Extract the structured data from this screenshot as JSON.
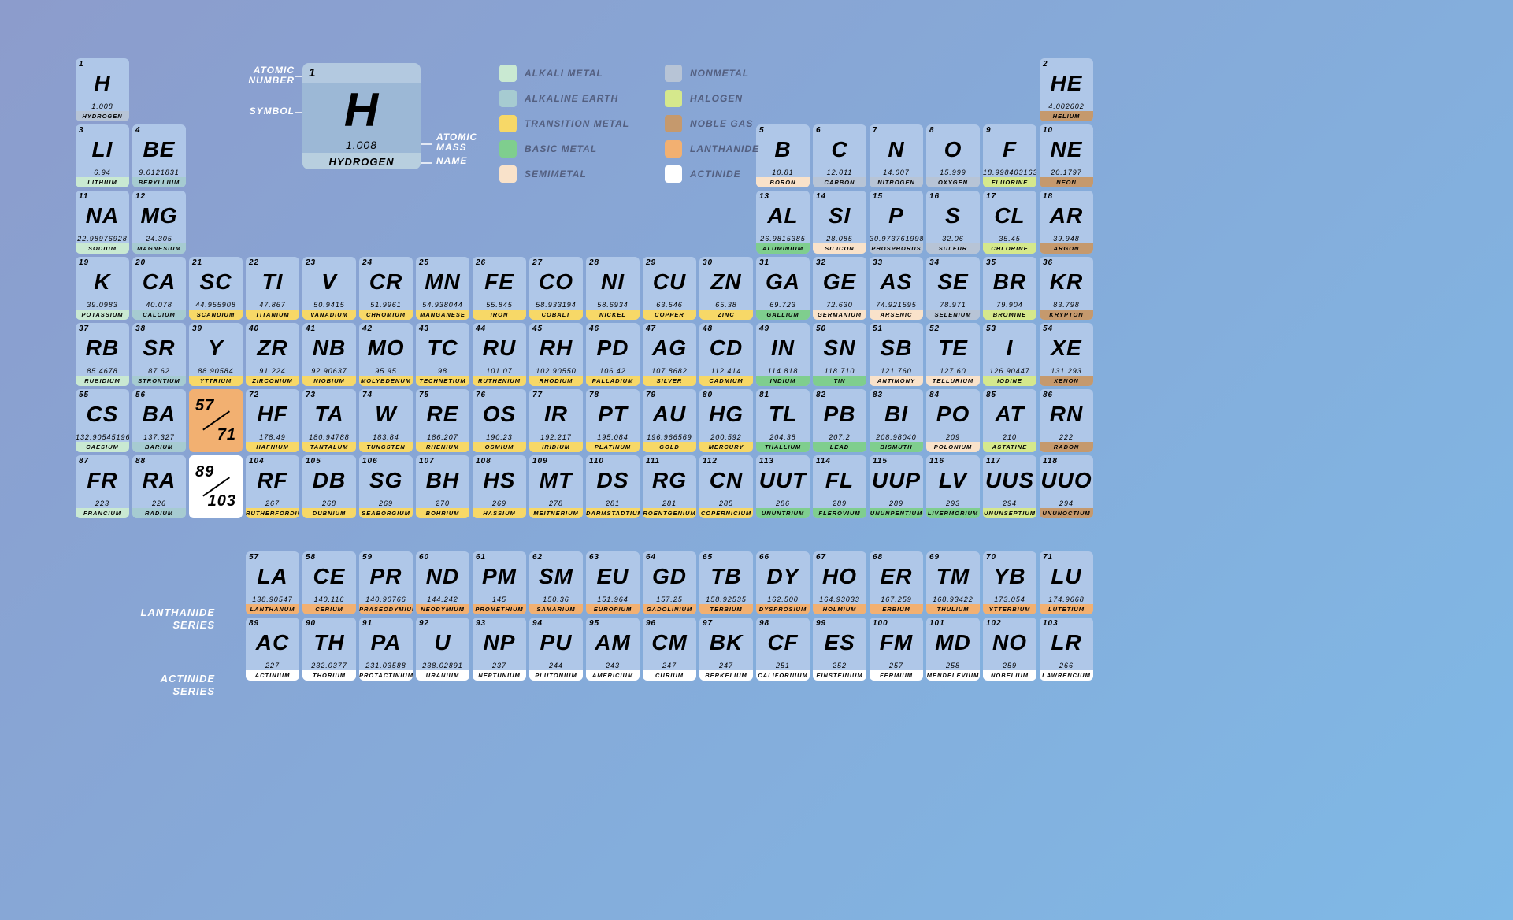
{
  "colors": {
    "cell_top": "#afc7e8",
    "key_top": "#9cb8d6",
    "key_num_row": "#b3c9e0",
    "key_name_row": "#b8cfdf"
  },
  "categories": {
    "alkali": {
      "label": "Alkali Metal",
      "color": "#c9e9d2"
    },
    "alkaline": {
      "label": "Alkaline Earth",
      "color": "#a6cbd1"
    },
    "transition": {
      "label": "Transition Metal",
      "color": "#f7d867"
    },
    "basic": {
      "label": "Basic Metal",
      "color": "#7fce8e"
    },
    "semimetal": {
      "label": "Semimetal",
      "color": "#f9e2ca"
    },
    "nonmetal": {
      "label": "Nonmetal",
      "color": "#b7c4d6"
    },
    "halogen": {
      "label": "Halogen",
      "color": "#d5e88c"
    },
    "noble": {
      "label": "Noble Gas",
      "color": "#c5996d"
    },
    "lanthanide": {
      "label": "Lanthanide",
      "color": "#f2b071"
    },
    "actinide": {
      "label": "Actinide",
      "color": "#ffffff"
    }
  },
  "legend_order": [
    "alkali",
    "nonmetal",
    "alkaline",
    "halogen",
    "transition",
    "noble",
    "basic",
    "lanthanide",
    "semimetal",
    "actinide"
  ],
  "key": {
    "labels": {
      "atomic_number": "Atomic\nNumber",
      "symbol": "Symbol",
      "atomic_mass": "Atomic\nMass",
      "name": "Name"
    },
    "sample": {
      "num": "1",
      "sym": "H",
      "mass": "1.008",
      "name": "Hydrogen"
    }
  },
  "series_labels": {
    "lanthanide": "Lanthanide\nSeries",
    "actinide": "Actinide\nSeries"
  },
  "ranges": [
    {
      "row": 6,
      "col": 3,
      "from": "57",
      "to": "71",
      "cat": "lanthanide"
    },
    {
      "row": 7,
      "col": 3,
      "from": "89",
      "to": "103",
      "cat": "actinide"
    }
  ],
  "elements": [
    {
      "n": 1,
      "s": "H",
      "m": "1.008",
      "nm": "Hydrogen",
      "c": "nonmetal",
      "r": 1,
      "col": 1
    },
    {
      "n": 2,
      "s": "He",
      "m": "4.002602",
      "nm": "Helium",
      "c": "noble",
      "r": 1,
      "col": 18
    },
    {
      "n": 3,
      "s": "Li",
      "m": "6.94",
      "nm": "Lithium",
      "c": "alkali",
      "r": 2,
      "col": 1
    },
    {
      "n": 4,
      "s": "Be",
      "m": "9.0121831",
      "nm": "Beryllium",
      "c": "alkaline",
      "r": 2,
      "col": 2
    },
    {
      "n": 5,
      "s": "B",
      "m": "10.81",
      "nm": "Boron",
      "c": "semimetal",
      "r": 2,
      "col": 13
    },
    {
      "n": 6,
      "s": "C",
      "m": "12.011",
      "nm": "Carbon",
      "c": "nonmetal",
      "r": 2,
      "col": 14
    },
    {
      "n": 7,
      "s": "N",
      "m": "14.007",
      "nm": "Nitrogen",
      "c": "nonmetal",
      "r": 2,
      "col": 15
    },
    {
      "n": 8,
      "s": "O",
      "m": "15.999",
      "nm": "Oxygen",
      "c": "nonmetal",
      "r": 2,
      "col": 16
    },
    {
      "n": 9,
      "s": "F",
      "m": "18.998403163",
      "nm": "Fluorine",
      "c": "halogen",
      "r": 2,
      "col": 17
    },
    {
      "n": 10,
      "s": "Ne",
      "m": "20.1797",
      "nm": "Neon",
      "c": "noble",
      "r": 2,
      "col": 18
    },
    {
      "n": 11,
      "s": "Na",
      "m": "22.98976928",
      "nm": "Sodium",
      "c": "alkali",
      "r": 3,
      "col": 1
    },
    {
      "n": 12,
      "s": "Mg",
      "m": "24.305",
      "nm": "Magnesium",
      "c": "alkaline",
      "r": 3,
      "col": 2
    },
    {
      "n": 13,
      "s": "Al",
      "m": "26.9815385",
      "nm": "Aluminium",
      "c": "basic",
      "r": 3,
      "col": 13
    },
    {
      "n": 14,
      "s": "Si",
      "m": "28.085",
      "nm": "Silicon",
      "c": "semimetal",
      "r": 3,
      "col": 14
    },
    {
      "n": 15,
      "s": "P",
      "m": "30.973761998",
      "nm": "Phosphorus",
      "c": "nonmetal",
      "r": 3,
      "col": 15
    },
    {
      "n": 16,
      "s": "S",
      "m": "32.06",
      "nm": "Sulfur",
      "c": "nonmetal",
      "r": 3,
      "col": 16
    },
    {
      "n": 17,
      "s": "Cl",
      "m": "35.45",
      "nm": "Chlorine",
      "c": "halogen",
      "r": 3,
      "col": 17
    },
    {
      "n": 18,
      "s": "Ar",
      "m": "39.948",
      "nm": "Argon",
      "c": "noble",
      "r": 3,
      "col": 18
    },
    {
      "n": 19,
      "s": "K",
      "m": "39.0983",
      "nm": "Potassium",
      "c": "alkali",
      "r": 4,
      "col": 1
    },
    {
      "n": 20,
      "s": "Ca",
      "m": "40.078",
      "nm": "Calcium",
      "c": "alkaline",
      "r": 4,
      "col": 2
    },
    {
      "n": 21,
      "s": "Sc",
      "m": "44.955908",
      "nm": "Scandium",
      "c": "transition",
      "r": 4,
      "col": 3
    },
    {
      "n": 22,
      "s": "Ti",
      "m": "47.867",
      "nm": "Titanium",
      "c": "transition",
      "r": 4,
      "col": 4
    },
    {
      "n": 23,
      "s": "V",
      "m": "50.9415",
      "nm": "Vanadium",
      "c": "transition",
      "r": 4,
      "col": 5
    },
    {
      "n": 24,
      "s": "Cr",
      "m": "51.9961",
      "nm": "Chromium",
      "c": "transition",
      "r": 4,
      "col": 6
    },
    {
      "n": 25,
      "s": "Mn",
      "m": "54.938044",
      "nm": "Manganese",
      "c": "transition",
      "r": 4,
      "col": 7
    },
    {
      "n": 26,
      "s": "Fe",
      "m": "55.845",
      "nm": "Iron",
      "c": "transition",
      "r": 4,
      "col": 8
    },
    {
      "n": 27,
      "s": "Co",
      "m": "58.933194",
      "nm": "Cobalt",
      "c": "transition",
      "r": 4,
      "col": 9
    },
    {
      "n": 28,
      "s": "Ni",
      "m": "58.6934",
      "nm": "Nickel",
      "c": "transition",
      "r": 4,
      "col": 10
    },
    {
      "n": 29,
      "s": "Cu",
      "m": "63.546",
      "nm": "Copper",
      "c": "transition",
      "r": 4,
      "col": 11
    },
    {
      "n": 30,
      "s": "Zn",
      "m": "65.38",
      "nm": "Zinc",
      "c": "transition",
      "r": 4,
      "col": 12
    },
    {
      "n": 31,
      "s": "Ga",
      "m": "69.723",
      "nm": "Gallium",
      "c": "basic",
      "r": 4,
      "col": 13
    },
    {
      "n": 32,
      "s": "Ge",
      "m": "72.630",
      "nm": "Germanium",
      "c": "semimetal",
      "r": 4,
      "col": 14
    },
    {
      "n": 33,
      "s": "As",
      "m": "74.921595",
      "nm": "Arsenic",
      "c": "semimetal",
      "r": 4,
      "col": 15
    },
    {
      "n": 34,
      "s": "Se",
      "m": "78.971",
      "nm": "Selenium",
      "c": "nonmetal",
      "r": 4,
      "col": 16
    },
    {
      "n": 35,
      "s": "Br",
      "m": "79.904",
      "nm": "Bromine",
      "c": "halogen",
      "r": 4,
      "col": 17
    },
    {
      "n": 36,
      "s": "Kr",
      "m": "83.798",
      "nm": "Krypton",
      "c": "noble",
      "r": 4,
      "col": 18
    },
    {
      "n": 37,
      "s": "Rb",
      "m": "85.4678",
      "nm": "Rubidium",
      "c": "alkali",
      "r": 5,
      "col": 1
    },
    {
      "n": 38,
      "s": "Sr",
      "m": "87.62",
      "nm": "Strontium",
      "c": "alkaline",
      "r": 5,
      "col": 2
    },
    {
      "n": 39,
      "s": "Y",
      "m": "88.90584",
      "nm": "Yttrium",
      "c": "transition",
      "r": 5,
      "col": 3
    },
    {
      "n": 40,
      "s": "Zr",
      "m": "91.224",
      "nm": "Zirconium",
      "c": "transition",
      "r": 5,
      "col": 4
    },
    {
      "n": 41,
      "s": "Nb",
      "m": "92.90637",
      "nm": "Niobium",
      "c": "transition",
      "r": 5,
      "col": 5
    },
    {
      "n": 42,
      "s": "Mo",
      "m": "95.95",
      "nm": "Molybdenum",
      "c": "transition",
      "r": 5,
      "col": 6
    },
    {
      "n": 43,
      "s": "Tc",
      "m": "98",
      "nm": "Technetium",
      "c": "transition",
      "r": 5,
      "col": 7
    },
    {
      "n": 44,
      "s": "Ru",
      "m": "101.07",
      "nm": "Ruthenium",
      "c": "transition",
      "r": 5,
      "col": 8
    },
    {
      "n": 45,
      "s": "Rh",
      "m": "102.90550",
      "nm": "Rhodium",
      "c": "transition",
      "r": 5,
      "col": 9
    },
    {
      "n": 46,
      "s": "Pd",
      "m": "106.42",
      "nm": "Palladium",
      "c": "transition",
      "r": 5,
      "col": 10
    },
    {
      "n": 47,
      "s": "Ag",
      "m": "107.8682",
      "nm": "Silver",
      "c": "transition",
      "r": 5,
      "col": 11
    },
    {
      "n": 48,
      "s": "Cd",
      "m": "112.414",
      "nm": "Cadmium",
      "c": "transition",
      "r": 5,
      "col": 12
    },
    {
      "n": 49,
      "s": "In",
      "m": "114.818",
      "nm": "Indium",
      "c": "basic",
      "r": 5,
      "col": 13
    },
    {
      "n": 50,
      "s": "Sn",
      "m": "118.710",
      "nm": "Tin",
      "c": "basic",
      "r": 5,
      "col": 14
    },
    {
      "n": 51,
      "s": "Sb",
      "m": "121.760",
      "nm": "Antimony",
      "c": "semimetal",
      "r": 5,
      "col": 15
    },
    {
      "n": 52,
      "s": "Te",
      "m": "127.60",
      "nm": "Tellurium",
      "c": "semimetal",
      "r": 5,
      "col": 16
    },
    {
      "n": 53,
      "s": "I",
      "m": "126.90447",
      "nm": "Iodine",
      "c": "halogen",
      "r": 5,
      "col": 17
    },
    {
      "n": 54,
      "s": "Xe",
      "m": "131.293",
      "nm": "Xenon",
      "c": "noble",
      "r": 5,
      "col": 18
    },
    {
      "n": 55,
      "s": "Cs",
      "m": "132.90545196",
      "nm": "Caesium",
      "c": "alkali",
      "r": 6,
      "col": 1
    },
    {
      "n": 56,
      "s": "Ba",
      "m": "137.327",
      "nm": "Barium",
      "c": "alkaline",
      "r": 6,
      "col": 2
    },
    {
      "n": 72,
      "s": "Hf",
      "m": "178.49",
      "nm": "Hafnium",
      "c": "transition",
      "r": 6,
      "col": 4
    },
    {
      "n": 73,
      "s": "Ta",
      "m": "180.94788",
      "nm": "Tantalum",
      "c": "transition",
      "r": 6,
      "col": 5
    },
    {
      "n": 74,
      "s": "W",
      "m": "183.84",
      "nm": "Tungsten",
      "c": "transition",
      "r": 6,
      "col": 6
    },
    {
      "n": 75,
      "s": "Re",
      "m": "186.207",
      "nm": "Rhenium",
      "c": "transition",
      "r": 6,
      "col": 7
    },
    {
      "n": 76,
      "s": "Os",
      "m": "190.23",
      "nm": "Osmium",
      "c": "transition",
      "r": 6,
      "col": 8
    },
    {
      "n": 77,
      "s": "Ir",
      "m": "192.217",
      "nm": "Iridium",
      "c": "transition",
      "r": 6,
      "col": 9
    },
    {
      "n": 78,
      "s": "Pt",
      "m": "195.084",
      "nm": "Platinum",
      "c": "transition",
      "r": 6,
      "col": 10
    },
    {
      "n": 79,
      "s": "Au",
      "m": "196.966569",
      "nm": "Gold",
      "c": "transition",
      "r": 6,
      "col": 11
    },
    {
      "n": 80,
      "s": "Hg",
      "m": "200.592",
      "nm": "Mercury",
      "c": "transition",
      "r": 6,
      "col": 12
    },
    {
      "n": 81,
      "s": "Tl",
      "m": "204.38",
      "nm": "Thallium",
      "c": "basic",
      "r": 6,
      "col": 13
    },
    {
      "n": 82,
      "s": "Pb",
      "m": "207.2",
      "nm": "Lead",
      "c": "basic",
      "r": 6,
      "col": 14
    },
    {
      "n": 83,
      "s": "Bi",
      "m": "208.98040",
      "nm": "Bismuth",
      "c": "basic",
      "r": 6,
      "col": 15
    },
    {
      "n": 84,
      "s": "Po",
      "m": "209",
      "nm": "Polonium",
      "c": "semimetal",
      "r": 6,
      "col": 16
    },
    {
      "n": 85,
      "s": "At",
      "m": "210",
      "nm": "Astatine",
      "c": "halogen",
      "r": 6,
      "col": 17
    },
    {
      "n": 86,
      "s": "Rn",
      "m": "222",
      "nm": "Radon",
      "c": "noble",
      "r": 6,
      "col": 18
    },
    {
      "n": 87,
      "s": "Fr",
      "m": "223",
      "nm": "Francium",
      "c": "alkali",
      "r": 7,
      "col": 1
    },
    {
      "n": 88,
      "s": "Ra",
      "m": "226",
      "nm": "Radium",
      "c": "alkaline",
      "r": 7,
      "col": 2
    },
    {
      "n": 104,
      "s": "Rf",
      "m": "267",
      "nm": "Rutherfordium",
      "c": "transition",
      "r": 7,
      "col": 4
    },
    {
      "n": 105,
      "s": "Db",
      "m": "268",
      "nm": "Dubnium",
      "c": "transition",
      "r": 7,
      "col": 5
    },
    {
      "n": 106,
      "s": "Sg",
      "m": "269",
      "nm": "Seaborgium",
      "c": "transition",
      "r": 7,
      "col": 6
    },
    {
      "n": 107,
      "s": "Bh",
      "m": "270",
      "nm": "Bohrium",
      "c": "transition",
      "r": 7,
      "col": 7
    },
    {
      "n": 108,
      "s": "Hs",
      "m": "269",
      "nm": "Hassium",
      "c": "transition",
      "r": 7,
      "col": 8
    },
    {
      "n": 109,
      "s": "Mt",
      "m": "278",
      "nm": "Meitnerium",
      "c": "transition",
      "r": 7,
      "col": 9
    },
    {
      "n": 110,
      "s": "Ds",
      "m": "281",
      "nm": "Darmstadtium",
      "c": "transition",
      "r": 7,
      "col": 10
    },
    {
      "n": 111,
      "s": "Rg",
      "m": "281",
      "nm": "Roentgenium",
      "c": "transition",
      "r": 7,
      "col": 11
    },
    {
      "n": 112,
      "s": "Cn",
      "m": "285",
      "nm": "Copernicium",
      "c": "transition",
      "r": 7,
      "col": 12
    },
    {
      "n": 113,
      "s": "Uut",
      "m": "286",
      "nm": "Ununtrium",
      "c": "basic",
      "r": 7,
      "col": 13
    },
    {
      "n": 114,
      "s": "Fl",
      "m": "289",
      "nm": "Flerovium",
      "c": "basic",
      "r": 7,
      "col": 14
    },
    {
      "n": 115,
      "s": "Uup",
      "m": "289",
      "nm": "Ununpentium",
      "c": "basic",
      "r": 7,
      "col": 15
    },
    {
      "n": 116,
      "s": "Lv",
      "m": "293",
      "nm": "Livermorium",
      "c": "basic",
      "r": 7,
      "col": 16
    },
    {
      "n": 117,
      "s": "Uus",
      "m": "294",
      "nm": "Ununseptium",
      "c": "halogen",
      "r": 7,
      "col": 17
    },
    {
      "n": 118,
      "s": "Uuo",
      "m": "294",
      "nm": "Ununoctium",
      "c": "noble",
      "r": 7,
      "col": 18
    },
    {
      "n": 57,
      "s": "La",
      "m": "138.90547",
      "nm": "Lanthanum",
      "c": "lanthanide",
      "r": 9,
      "col": 4
    },
    {
      "n": 58,
      "s": "Ce",
      "m": "140.116",
      "nm": "Cerium",
      "c": "lanthanide",
      "r": 9,
      "col": 5
    },
    {
      "n": 59,
      "s": "Pr",
      "m": "140.90766",
      "nm": "Praseodymium",
      "c": "lanthanide",
      "r": 9,
      "col": 6
    },
    {
      "n": 60,
      "s": "Nd",
      "m": "144.242",
      "nm": "Neodymium",
      "c": "lanthanide",
      "r": 9,
      "col": 7
    },
    {
      "n": 61,
      "s": "Pm",
      "m": "145",
      "nm": "Promethium",
      "c": "lanthanide",
      "r": 9,
      "col": 8
    },
    {
      "n": 62,
      "s": "Sm",
      "m": "150.36",
      "nm": "Samarium",
      "c": "lanthanide",
      "r": 9,
      "col": 9
    },
    {
      "n": 63,
      "s": "Eu",
      "m": "151.964",
      "nm": "Europium",
      "c": "lanthanide",
      "r": 9,
      "col": 10
    },
    {
      "n": 64,
      "s": "Gd",
      "m": "157.25",
      "nm": "Gadolinium",
      "c": "lanthanide",
      "r": 9,
      "col": 11
    },
    {
      "n": 65,
      "s": "Tb",
      "m": "158.92535",
      "nm": "Terbium",
      "c": "lanthanide",
      "r": 9,
      "col": 12
    },
    {
      "n": 66,
      "s": "Dy",
      "m": "162.500",
      "nm": "Dysprosium",
      "c": "lanthanide",
      "r": 9,
      "col": 13
    },
    {
      "n": 67,
      "s": "Ho",
      "m": "164.93033",
      "nm": "Holmium",
      "c": "lanthanide",
      "r": 9,
      "col": 14
    },
    {
      "n": 68,
      "s": "Er",
      "m": "167.259",
      "nm": "Erbium",
      "c": "lanthanide",
      "r": 9,
      "col": 15
    },
    {
      "n": 69,
      "s": "Tm",
      "m": "168.93422",
      "nm": "Thulium",
      "c": "lanthanide",
      "r": 9,
      "col": 16
    },
    {
      "n": 70,
      "s": "Yb",
      "m": "173.054",
      "nm": "Ytterbium",
      "c": "lanthanide",
      "r": 9,
      "col": 17
    },
    {
      "n": 71,
      "s": "Lu",
      "m": "174.9668",
      "nm": "Lutetium",
      "c": "lanthanide",
      "r": 9,
      "col": 18
    },
    {
      "n": 89,
      "s": "Ac",
      "m": "227",
      "nm": "Actinium",
      "c": "actinide",
      "r": 10,
      "col": 4
    },
    {
      "n": 90,
      "s": "Th",
      "m": "232.0377",
      "nm": "Thorium",
      "c": "actinide",
      "r": 10,
      "col": 5
    },
    {
      "n": 91,
      "s": "Pa",
      "m": "231.03588",
      "nm": "Protactinium",
      "c": "actinide",
      "r": 10,
      "col": 6
    },
    {
      "n": 92,
      "s": "U",
      "m": "238.02891",
      "nm": "Uranium",
      "c": "actinide",
      "r": 10,
      "col": 7
    },
    {
      "n": 93,
      "s": "Np",
      "m": "237",
      "nm": "Neptunium",
      "c": "actinide",
      "r": 10,
      "col": 8
    },
    {
      "n": 94,
      "s": "Pu",
      "m": "244",
      "nm": "Plutonium",
      "c": "actinide",
      "r": 10,
      "col": 9
    },
    {
      "n": 95,
      "s": "Am",
      "m": "243",
      "nm": "Americium",
      "c": "actinide",
      "r": 10,
      "col": 10
    },
    {
      "n": 96,
      "s": "Cm",
      "m": "247",
      "nm": "Curium",
      "c": "actinide",
      "r": 10,
      "col": 11
    },
    {
      "n": 97,
      "s": "Bk",
      "m": "247",
      "nm": "Berkelium",
      "c": "actinide",
      "r": 10,
      "col": 12
    },
    {
      "n": 98,
      "s": "Cf",
      "m": "251",
      "nm": "Californium",
      "c": "actinide",
      "r": 10,
      "col": 13
    },
    {
      "n": 99,
      "s": "Es",
      "m": "252",
      "nm": "Einsteinium",
      "c": "actinide",
      "r": 10,
      "col": 14
    },
    {
      "n": 100,
      "s": "Fm",
      "m": "257",
      "nm": "Fermium",
      "c": "actinide",
      "r": 10,
      "col": 15
    },
    {
      "n": 101,
      "s": "Md",
      "m": "258",
      "nm": "Mendelevium",
      "c": "actinide",
      "r": 10,
      "col": 16
    },
    {
      "n": 102,
      "s": "No",
      "m": "259",
      "nm": "Nobelium",
      "c": "actinide",
      "r": 10,
      "col": 17
    },
    {
      "n": 103,
      "s": "Lr",
      "m": "266",
      "nm": "Lawrencium",
      "c": "actinide",
      "r": 10,
      "col": 18
    }
  ]
}
